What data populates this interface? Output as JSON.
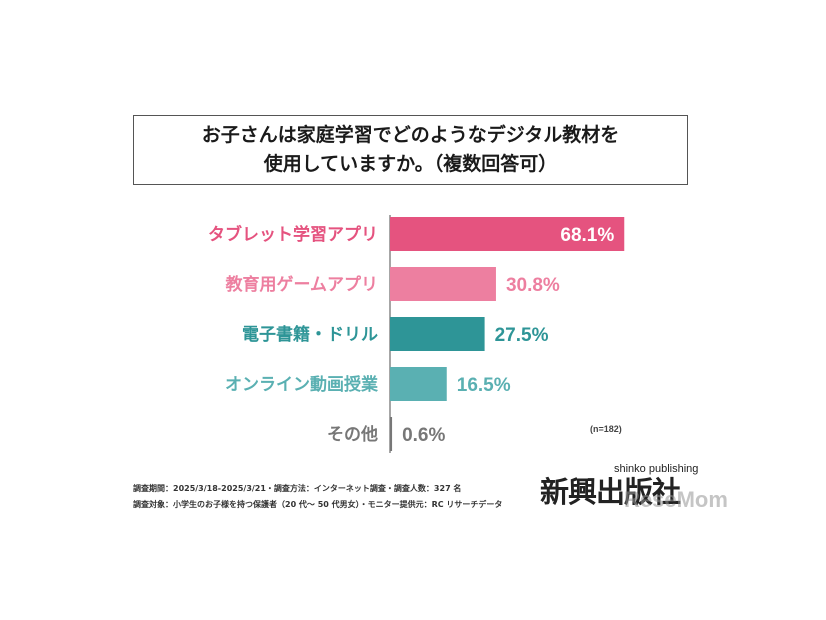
{
  "title": {
    "line1": "お子さんは家庭学習でどのようなデジタル教材を",
    "line2": "使用していますか。（複数回答可）"
  },
  "chart_data": {
    "type": "bar",
    "orientation": "horizontal",
    "categories": [
      "タブレット学習アプリ",
      "教育用ゲームアプリ",
      "電子書籍・ドリル",
      "オンライン動画授業",
      "その他"
    ],
    "values": [
      68.1,
      30.8,
      27.5,
      16.5,
      0.6
    ],
    "value_labels": [
      "68.1%",
      "30.8%",
      "27.5%",
      "16.5%",
      "0.6%"
    ],
    "unit": "%",
    "colors": [
      "#e5537f",
      "#ed7fa0",
      "#2e9597",
      "#5ab0b2",
      "#777777"
    ],
    "label_colors": [
      "#e5537f",
      "#ed7fa0",
      "#2e9597",
      "#5ab0b2",
      "#777777"
    ],
    "xlim": [
      0,
      100
    ],
    "grid": false,
    "legend": "none"
  },
  "sample_note": "(n=182)",
  "footnotes": {
    "line1": "調査期間：2025/3/18-2025/3/21・調査方法：インターネット調査・調査人数：327 名",
    "line2": "調査対象：小学生のお子様を持つ保護者（20 代～ 50 代男女）・モニター提供元：RC リサーチデータ"
  },
  "logo": {
    "main": "新興出版社",
    "sub": "shinko publishing",
    "watermark": "ReseMom"
  }
}
